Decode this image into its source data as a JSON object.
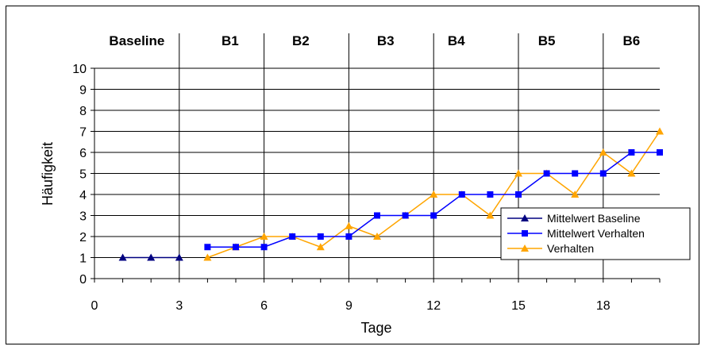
{
  "chart_data": {
    "type": "line",
    "xlabel": "Tage",
    "ylabel": "Häufigkeit",
    "xlim": [
      0,
      20
    ],
    "ylim": [
      0,
      10
    ],
    "x_ticks": [
      0,
      3,
      6,
      9,
      12,
      15,
      18
    ],
    "y_ticks": [
      0,
      1,
      2,
      3,
      4,
      5,
      6,
      7,
      8,
      9,
      10
    ],
    "phase_dividers": [
      3,
      6,
      9,
      12,
      15,
      18
    ],
    "phases": [
      {
        "label": "Baseline",
        "x_center": 1.5
      },
      {
        "label": "B1",
        "x_center": 4.8
      },
      {
        "label": "B2",
        "x_center": 7.3
      },
      {
        "label": "B3",
        "x_center": 10.3
      },
      {
        "label": "B4",
        "x_center": 12.8
      },
      {
        "label": "B5",
        "x_center": 16.0
      },
      {
        "label": "B6",
        "x_center": 19.0
      }
    ],
    "grid": true,
    "legend_position": "bottom-right",
    "series": [
      {
        "name": "Mittelwert Baseline",
        "color": "#000080",
        "marker": "triangle",
        "x": [
          1,
          2,
          3
        ],
        "y": [
          1,
          1,
          1
        ]
      },
      {
        "name": "Mittelwert Verhalten",
        "color": "#0000FF",
        "marker": "square",
        "x": [
          4,
          5,
          6,
          7,
          8,
          9,
          10,
          11,
          12,
          13,
          14,
          15,
          16,
          17,
          18,
          19,
          20
        ],
        "y": [
          1.5,
          1.5,
          1.5,
          2,
          2,
          2,
          3,
          3,
          3,
          4,
          4,
          4,
          5,
          5,
          5,
          6,
          6
        ]
      },
      {
        "name": "Verhalten",
        "color": "#FFA500",
        "marker": "triangle",
        "x": [
          4,
          5,
          6,
          7,
          8,
          9,
          10,
          11,
          12,
          13,
          14,
          15,
          16,
          17,
          18,
          19,
          20
        ],
        "y": [
          1,
          1.5,
          2,
          2,
          1.5,
          2.5,
          2,
          3,
          4,
          4,
          3,
          5,
          5,
          4,
          6,
          5,
          7
        ]
      }
    ]
  }
}
